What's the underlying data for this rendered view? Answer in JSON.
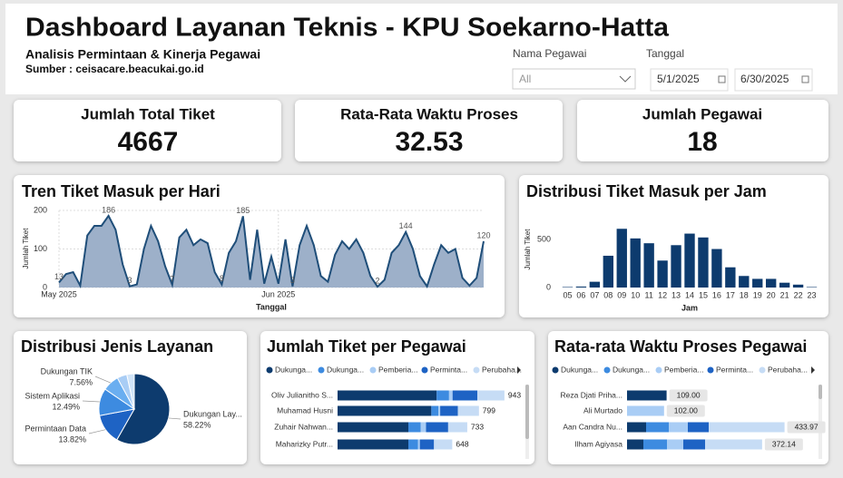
{
  "header": {
    "title": "Dashboard Layanan Teknis - KPU Soekarno-Hatta",
    "subtitle": "Analisis Permintaan & Kinerja Pegawai",
    "source": "Sumber : ceisacare.beacukai.go.id"
  },
  "filters": {
    "employee": {
      "label": "Nama Pegawai",
      "value": "All"
    },
    "date": {
      "label": "Tanggal",
      "start": "5/1/2025",
      "end": "6/30/2025"
    }
  },
  "cards": [
    {
      "title": "Jumlah Total Tiket",
      "value": 4667
    },
    {
      "title": "Rata-Rata Waktu Proses",
      "value": 32.53
    },
    {
      "title": "Jumlah Pegawai",
      "value": 18
    }
  ],
  "chart_data": [
    {
      "type": "area",
      "title": "Tren Tiket Masuk per Hari",
      "xlabel": "Tanggal",
      "ylabel": "Jumlah Tiket",
      "values": [
        13,
        35,
        40,
        5,
        135,
        160,
        160,
        186,
        150,
        60,
        3,
        8,
        100,
        160,
        120,
        55,
        7,
        130,
        150,
        110,
        125,
        115,
        40,
        8,
        90,
        120,
        185,
        20,
        150,
        10,
        80,
        10,
        125,
        3,
        110,
        160,
        110,
        30,
        15,
        85,
        120,
        100,
        125,
        90,
        30,
        2,
        20,
        90,
        110,
        144,
        100,
        30,
        3,
        60,
        110,
        90,
        100,
        25,
        5,
        25,
        120
      ],
      "value_labels": [
        "13",
        null,
        null,
        null,
        null,
        null,
        null,
        "186",
        null,
        null,
        "3",
        null,
        null,
        null,
        null,
        null,
        "7",
        null,
        null,
        null,
        null,
        null,
        null,
        "8",
        null,
        null,
        "185",
        null,
        null,
        null,
        null,
        null,
        null,
        "3",
        null,
        null,
        null,
        null,
        null,
        null,
        null,
        null,
        null,
        null,
        null,
        "2",
        null,
        null,
        null,
        "144",
        null,
        null,
        null,
        null,
        null,
        null,
        null,
        null,
        null,
        null,
        "120"
      ],
      "xlim": [
        0,
        60
      ],
      "xticks": [
        {
          "value": 0,
          "label": "May 2025"
        },
        {
          "value": 31,
          "label": "Jun 2025"
        }
      ],
      "ylim": [
        0,
        200
      ],
      "yticks": [
        0,
        100,
        200
      ],
      "grid": true,
      "color": "#1f4e79",
      "fill": "#9db0c9"
    },
    {
      "type": "bar",
      "title": "Distribusi Tiket Masuk per Jam",
      "xlabel": "Jam",
      "ylabel": "Jumlah Tiket",
      "categories": [
        "05",
        "06",
        "07",
        "08",
        "09",
        "10",
        "11",
        "12",
        "13",
        "14",
        "15",
        "16",
        "17",
        "18",
        "19",
        "20",
        "21",
        "22",
        "23"
      ],
      "values": [
        5,
        10,
        60,
        330,
        610,
        510,
        460,
        280,
        440,
        560,
        520,
        400,
        210,
        120,
        90,
        90,
        50,
        30,
        5
      ],
      "ylim": [
        0,
        650
      ],
      "yticks": [
        0,
        500
      ],
      "color": "#0d3b6e"
    },
    {
      "type": "pie",
      "title": "Distribusi Jenis Layanan",
      "categories": [
        "Dukungan Lay...",
        "Permintaan Data",
        "Sistem Aplikasi",
        "Dukungan TIK",
        null,
        null
      ],
      "values": [
        58.22,
        13.82,
        12.49,
        7.56,
        4.5,
        3.41
      ],
      "value_labels": [
        "58.22%",
        "13.82%",
        "12.49%",
        "7.56%",
        null,
        null
      ],
      "colors": [
        "#0d3b6e",
        "#1e63c4",
        "#3d8be0",
        "#6aaef0",
        "#a9cdf5",
        "#d0e4f8"
      ]
    },
    {
      "type": "stacked_barh",
      "title": "Jumlah Tiket per Pegawai",
      "categories": [
        "Oliv Julianitho S...",
        "Muhamad Husni",
        "Zuhair Nahwan...",
        "Maharizky Putr..."
      ],
      "series": [
        {
          "name": "Dukunga...",
          "color": "#0d3b6e",
          "values": [
            560,
            530,
            400,
            400
          ]
        },
        {
          "name": "Dukunga...",
          "color": "#3d8be0",
          "values": [
            70,
            40,
            70,
            55
          ]
        },
        {
          "name": "Pemberia...",
          "color": "#a9cdf5",
          "values": [
            20,
            10,
            30,
            10
          ]
        },
        {
          "name": "Perminta...",
          "color": "#1e63c4",
          "values": [
            140,
            100,
            125,
            80
          ]
        },
        {
          "name": "Perubaha...",
          "color": "#c6dcf5",
          "values": [
            153,
            119,
            108,
            103
          ]
        }
      ],
      "total_labels": [
        "943",
        "799",
        "733",
        "648"
      ],
      "xlim": [
        0,
        1000
      ]
    },
    {
      "type": "stacked_barh",
      "title": "Rata-rata Waktu Proses Pegawai",
      "categories": [
        "Reza Djati Priha...",
        "Ali Murtado",
        "Aan Candra Nu...",
        "Ilham Agiyasa"
      ],
      "series": [
        {
          "name": "Dukunga...",
          "color": "#0d3b6e",
          "values": [
            109,
            0,
            52.5,
            45
          ]
        },
        {
          "name": "Dukunga...",
          "color": "#3d8be0",
          "values": [
            0,
            0,
            62.5,
            65
          ]
        },
        {
          "name": "Pemberia...",
          "color": "#a9cdf5",
          "values": [
            0,
            102,
            52.5,
            45
          ]
        },
        {
          "name": "Perminta...",
          "color": "#1e63c4",
          "values": [
            0,
            0,
            57.5,
            60
          ]
        },
        {
          "name": "Perubaha...",
          "color": "#c6dcf5",
          "values": [
            0,
            0,
            208.97,
            157.14
          ]
        }
      ],
      "total_labels": [
        "109.00",
        "102.00",
        "433.97",
        "372.14"
      ],
      "xlim": [
        0,
        500
      ]
    }
  ]
}
